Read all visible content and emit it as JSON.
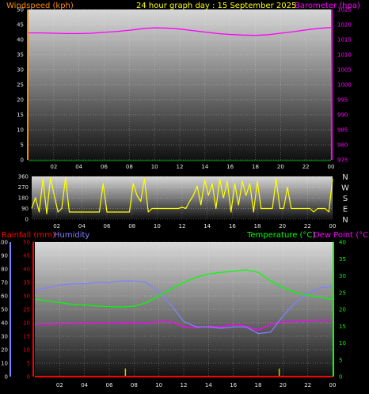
{
  "header": {
    "left": "Windspeed (kph)",
    "center": "24 hour graph day : 15 September 2025",
    "right": "Barometer (hpa)"
  },
  "colors": {
    "windspeed": "#ff8800",
    "barometer": "#ff00ff",
    "direction": "#ffff00",
    "rainfall": "#ff0000",
    "humidity": "#8080ff",
    "temperature": "#00ff00",
    "dewpoint": "#ff00ff",
    "title": "#ffff00",
    "ticks": "#e0e0e0"
  },
  "x_ticks": [
    "02",
    "04",
    "06",
    "08",
    "10",
    "12",
    "14",
    "16",
    "18",
    "20",
    "22",
    "00"
  ],
  "chart_data": [
    {
      "type": "line",
      "name": "wind-barometer",
      "left_axis": {
        "label": "Windspeed (kph)",
        "range": [
          0,
          50
        ],
        "ticks": [
          0,
          5,
          10,
          15,
          20,
          25,
          30,
          35,
          40,
          45,
          50
        ]
      },
      "right_axis": {
        "label": "Barometer (hpa)",
        "range": [
          975,
          1025
        ],
        "ticks": [
          975,
          980,
          985,
          990,
          995,
          1000,
          1005,
          1010,
          1015,
          1020,
          1025
        ]
      },
      "x_range": [
        0,
        24
      ],
      "grid": true,
      "series": [
        {
          "name": "Barometer (hpa)",
          "axis": "right",
          "x": [
            0,
            1,
            2,
            3,
            4,
            5,
            6,
            7,
            8,
            9,
            10,
            11,
            12,
            13,
            14,
            15,
            16,
            17,
            18,
            19,
            20,
            21,
            22,
            23,
            24
          ],
          "values": [
            1017.2,
            1017.2,
            1017.1,
            1017.0,
            1017.0,
            1017.1,
            1017.4,
            1017.7,
            1018.1,
            1018.6,
            1018.9,
            1018.8,
            1018.5,
            1018.0,
            1017.5,
            1017.0,
            1016.7,
            1016.5,
            1016.4,
            1016.6,
            1017.1,
            1017.6,
            1018.2,
            1018.7,
            1019.0
          ]
        }
      ]
    },
    {
      "type": "scatter",
      "name": "wind-direction",
      "left_axis": {
        "ticks": [
          0,
          90,
          180,
          270,
          360
        ],
        "range": [
          0,
          360
        ]
      },
      "right_labels": [
        "N",
        "W",
        "S",
        "E",
        "N"
      ],
      "x_range": [
        0,
        24
      ],
      "grid": true,
      "series": [
        {
          "name": "Wind direction",
          "x": [
            0,
            0.3,
            0.6,
            0.9,
            1.2,
            1.5,
            1.8,
            2.1,
            2.4,
            2.7,
            3,
            3.3,
            3.6,
            3.9,
            4.2,
            4.5,
            4.8,
            5.1,
            5.4,
            5.7,
            6,
            6.3,
            6.6,
            6.9,
            7.2,
            7.5,
            7.8,
            8.1,
            8.4,
            8.7,
            9,
            9.3,
            9.6,
            9.9,
            10.2,
            10.5,
            10.8,
            11.1,
            11.4,
            11.7,
            12,
            12.3,
            12.6,
            12.9,
            13.2,
            13.5,
            13.8,
            14.1,
            14.4,
            14.7,
            15,
            15.3,
            15.6,
            15.9,
            16.2,
            16.5,
            16.8,
            17.1,
            17.4,
            17.7,
            18,
            18.3,
            18.6,
            18.9,
            19.2,
            19.5,
            19.8,
            20.1,
            20.4,
            20.7,
            21,
            21.3,
            21.6,
            21.9,
            22.2,
            22.5,
            22.8,
            23.1,
            23.4,
            23.7,
            24
          ],
          "values": [
            90,
            180,
            60,
            340,
            45,
            350,
            200,
            60,
            90,
            350,
            60,
            60,
            60,
            60,
            60,
            60,
            60,
            60,
            60,
            300,
            60,
            60,
            60,
            60,
            60,
            60,
            60,
            300,
            200,
            150,
            340,
            60,
            90,
            90,
            90,
            90,
            90,
            90,
            90,
            90,
            100,
            90,
            150,
            200,
            280,
            120,
            330,
            200,
            300,
            90,
            340,
            180,
            320,
            60,
            300,
            120,
            320,
            200,
            300,
            60,
            320,
            90,
            90,
            90,
            90,
            340,
            90,
            90,
            270,
            90,
            90,
            90,
            90,
            90,
            90,
            60,
            90,
            90,
            90,
            60,
            340
          ]
        }
      ]
    },
    {
      "type": "line",
      "name": "temp-humidity",
      "axes": {
        "humidity": {
          "label": "Humidity",
          "range": [
            0,
            100
          ],
          "ticks": [
            0,
            10,
            20,
            30,
            40,
            50,
            60,
            70,
            80,
            90,
            100
          ]
        },
        "rainfall": {
          "label": "Rainfall (mm)",
          "range": [
            0,
            50
          ],
          "ticks": [
            0,
            5,
            10,
            15,
            20,
            25,
            30,
            35,
            40,
            45,
            50
          ]
        },
        "temperature": {
          "label": "Temperature (°C)",
          "range": [
            0,
            40
          ],
          "ticks": [
            0,
            5,
            10,
            15,
            20,
            25,
            30,
            35,
            40
          ]
        },
        "dewpoint_label": "Dew Point (°C)"
      },
      "x_range": [
        0,
        24
      ],
      "grid": true,
      "series": [
        {
          "name": "Humidity",
          "axis": "humidity",
          "x": [
            0,
            1,
            2,
            3,
            4,
            5,
            6,
            7,
            8,
            9,
            10,
            11,
            12,
            13,
            14,
            15,
            16,
            17,
            18,
            19,
            20,
            21,
            22,
            23,
            24
          ],
          "values": [
            64,
            66,
            68,
            69,
            69,
            70,
            70,
            71,
            71,
            70,
            63,
            53,
            41,
            37,
            37,
            36,
            37,
            37,
            32,
            33,
            45,
            55,
            62,
            66,
            67
          ]
        },
        {
          "name": "Temperature (°C)",
          "axis": "temperature",
          "x": [
            0,
            1,
            2,
            3,
            4,
            5,
            6,
            7,
            8,
            9,
            10,
            11,
            12,
            13,
            14,
            15,
            16,
            17,
            18,
            19,
            20,
            21,
            22,
            23,
            24
          ],
          "values": [
            23.0,
            22.5,
            22.0,
            21.5,
            21.3,
            21.0,
            20.8,
            20.7,
            20.9,
            22.0,
            24.0,
            26.0,
            28.0,
            29.5,
            30.5,
            31.0,
            31.3,
            31.8,
            31.0,
            28.5,
            26.5,
            25.0,
            24.2,
            23.5,
            23.0
          ]
        },
        {
          "name": "Dew Point (°C)",
          "axis": "temperature",
          "x": [
            0,
            1,
            2,
            3,
            4,
            5,
            6,
            7,
            8,
            9,
            10,
            11,
            12,
            13,
            14,
            15,
            16,
            17,
            18,
            19,
            20,
            21,
            22,
            23,
            24
          ],
          "values": [
            15.5,
            15.6,
            15.7,
            15.8,
            15.9,
            16.0,
            16.0,
            16.1,
            16.1,
            16.0,
            16.3,
            16.3,
            14.8,
            14.5,
            15.0,
            14.8,
            15.5,
            15.0,
            13.8,
            15.5,
            16.3,
            16.3,
            16.5,
            16.7,
            16.8
          ]
        },
        {
          "name": "Rainfall (mm)",
          "axis": "rainfall",
          "x": [
            0,
            24
          ],
          "values": [
            0,
            0
          ]
        }
      ],
      "bars": {
        "name": "Rain events",
        "x": [
          7.3,
          19.7
        ],
        "values": [
          3,
          3
        ]
      }
    }
  ],
  "legend2": {
    "rainfall": "Rainfall (mm)",
    "humidity": "Humidity",
    "temperature": "Temperature (°C)",
    "dewpoint": "Dew Point (°C)"
  }
}
